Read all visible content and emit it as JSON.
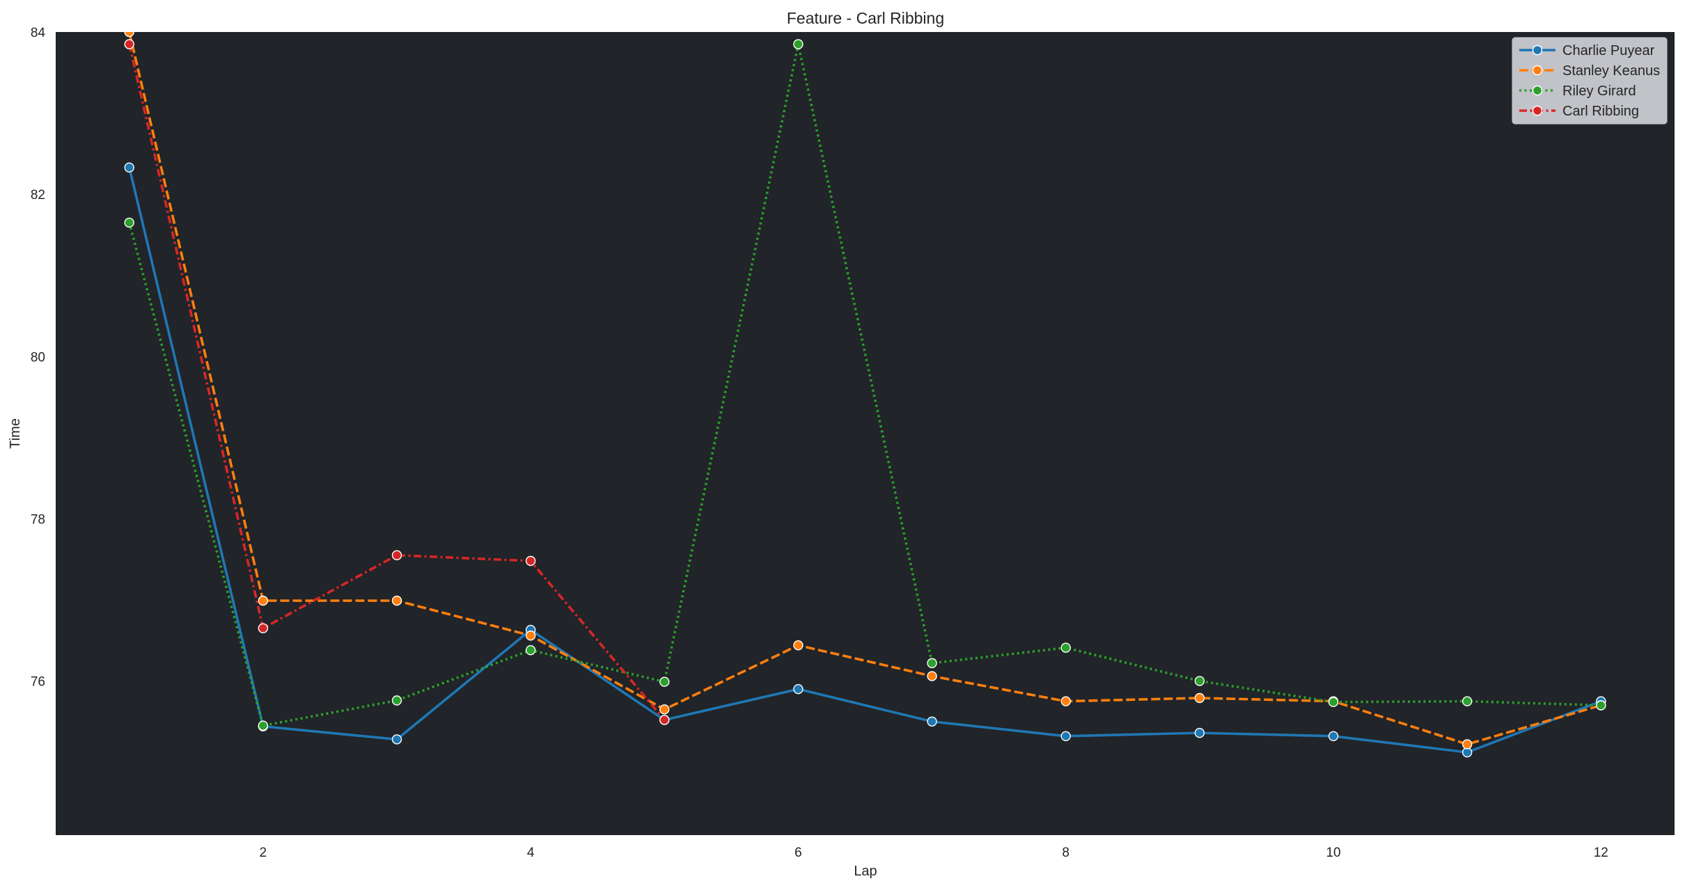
{
  "chart_data": {
    "type": "line",
    "title": "Feature - Carl Ribbing",
    "xlabel": "Lap",
    "ylabel": "Time",
    "xlim": [
      0.45,
      12.55
    ],
    "ylim": [
      74.1,
      84.0
    ],
    "x_ticks": [
      2,
      4,
      6,
      8,
      10,
      12
    ],
    "y_ticks": [
      76,
      78,
      80,
      82,
      84
    ],
    "grid": false,
    "background": "#212428",
    "legend_position": "top-right",
    "x": [
      1,
      2,
      3,
      4,
      5,
      6,
      7,
      8,
      9,
      10,
      11,
      12
    ],
    "series": [
      {
        "name": "Charlie Puyear",
        "color": "#1f77b4",
        "dash": "solid",
        "x": [
          1,
          2,
          3,
          4,
          5,
          6,
          7,
          8,
          9,
          10,
          11,
          12
        ],
        "values": [
          82.33,
          75.44,
          75.28,
          76.63,
          75.52,
          75.9,
          75.5,
          75.32,
          75.36,
          75.32,
          75.12,
          75.75
        ]
      },
      {
        "name": "Stanley Keanus",
        "color": "#ff7f0e",
        "dash": "dashed",
        "x": [
          1,
          2,
          3,
          4,
          5,
          6,
          7,
          8,
          9,
          10,
          11,
          12
        ],
        "values": [
          84.0,
          76.99,
          76.99,
          76.56,
          75.65,
          76.44,
          76.06,
          75.75,
          75.79,
          75.75,
          75.22,
          75.7
        ]
      },
      {
        "name": "Riley Girard",
        "color": "#2ca02c",
        "dash": "dotted",
        "x": [
          1,
          2,
          3,
          4,
          5,
          6,
          7,
          8,
          9,
          10,
          11,
          12
        ],
        "values": [
          81.65,
          75.45,
          75.76,
          76.38,
          75.99,
          83.85,
          76.22,
          76.41,
          76.0,
          75.74,
          75.75,
          75.7
        ]
      },
      {
        "name": "Carl Ribbing",
        "color": "#d62728",
        "dash": "dashdot",
        "x": [
          1,
          2,
          3,
          4,
          5
        ],
        "values": [
          83.85,
          76.65,
          77.55,
          77.48,
          75.52
        ]
      }
    ]
  }
}
